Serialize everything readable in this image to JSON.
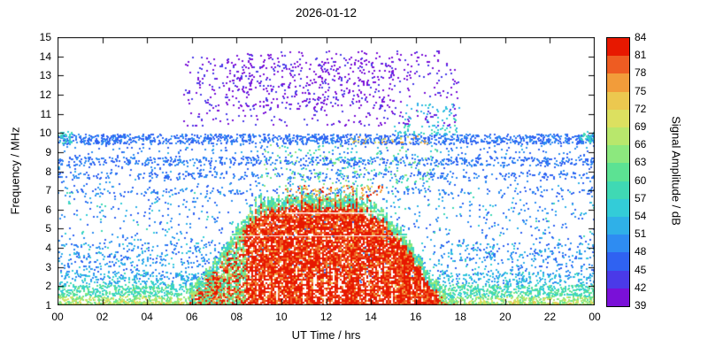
{
  "chart_data": {
    "type": "heatmap",
    "title": "2026-01-12",
    "xlabel": "UT Time / hrs",
    "ylabel": "Frequency / MHz",
    "xlim": [
      0,
      24
    ],
    "ylim": [
      1,
      15
    ],
    "grid": false,
    "x_tick_values": [
      0,
      2,
      4,
      6,
      8,
      10,
      12,
      14,
      16,
      18,
      20,
      22,
      24
    ],
    "x_tick_labels": [
      "00",
      "02",
      "04",
      "06",
      "08",
      "10",
      "12",
      "14",
      "16",
      "18",
      "20",
      "22",
      "00"
    ],
    "y_tick_values": [
      1,
      2,
      3,
      4,
      5,
      6,
      7,
      8,
      9,
      10,
      11,
      12,
      13,
      14,
      15
    ],
    "colorbar": {
      "label": "Signal Amplitude / dB",
      "min": 39,
      "max": 84,
      "step": 3,
      "tick_labels": [
        39,
        42,
        45,
        48,
        51,
        54,
        57,
        60,
        63,
        66,
        69,
        72,
        75,
        78,
        81,
        84
      ],
      "colors": [
        "#7a10d8",
        "#4a3ae8",
        "#2f62f2",
        "#2e8cf2",
        "#2fb0e8",
        "#33ccd8",
        "#3fd9b4",
        "#5ce293",
        "#8ce87e",
        "#b8e76c",
        "#dce060",
        "#ecc84f",
        "#f29c3a",
        "#ee5c22",
        "#e71800"
      ]
    },
    "background": "#ffffff",
    "seed": 42,
    "features": [
      {
        "name": "background-scatter-blue",
        "type": "scatter",
        "t": [
          0,
          24
        ],
        "f": [
          2.2,
          9.4
        ],
        "amp": [
          45,
          52
        ],
        "n": 1500
      },
      {
        "name": "background-scatter-cyan",
        "type": "scatter",
        "t": [
          0,
          24
        ],
        "f": [
          2.2,
          7.0
        ],
        "amp": [
          53,
          59
        ],
        "n": 220
      },
      {
        "name": "band-9p7-MHz",
        "type": "scatter",
        "t": [
          0,
          24
        ],
        "f": [
          9.45,
          9.97
        ],
        "amp": [
          45,
          50
        ],
        "n": 1200
      },
      {
        "name": "band-8p5-MHz",
        "type": "scatter",
        "t": [
          0,
          24
        ],
        "f": [
          8.35,
          8.78
        ],
        "amp": [
          45,
          50
        ],
        "n": 520
      },
      {
        "name": "band-7p8-MHz",
        "type": "scatter",
        "t": [
          0,
          24
        ],
        "f": [
          7.65,
          7.98
        ],
        "amp": [
          45,
          50
        ],
        "n": 260
      },
      {
        "name": "band-7p0-MHz",
        "type": "scatter",
        "t": [
          0,
          24
        ],
        "f": [
          6.85,
          7.1
        ],
        "amp": [
          45,
          50
        ],
        "n": 130
      },
      {
        "name": "cyan-patch-left-edge",
        "type": "scatter",
        "t": [
          0,
          0.6
        ],
        "f": [
          9.5,
          10.1
        ],
        "amp": [
          54,
          60
        ],
        "n": 35
      },
      {
        "name": "cyan-patch-right-edge",
        "type": "scatter",
        "t": [
          23.3,
          24
        ],
        "f": [
          9.5,
          10.1
        ],
        "amp": [
          54,
          60
        ],
        "n": 30
      },
      {
        "name": "orange-dots-9p7",
        "type": "scatter",
        "t": [
          13,
          16.5
        ],
        "f": [
          9.5,
          9.85
        ],
        "amp": [
          69,
          78
        ],
        "n": 30
      },
      {
        "name": "teal-dots-10p2",
        "type": "scatter",
        "t": [
          15,
          18
        ],
        "f": [
          9.95,
          10.5
        ],
        "amp": [
          52,
          60
        ],
        "n": 55
      },
      {
        "name": "daytime-upper-scatter",
        "type": "scatter",
        "t": [
          9,
          17
        ],
        "f": [
          7.2,
          9.4
        ],
        "amp": [
          54,
          66
        ],
        "n": 190
      },
      {
        "name": "night-bottom-orange-left",
        "type": "scatter",
        "t": [
          0,
          7.3
        ],
        "f": [
          1.0,
          1.22
        ],
        "amp": [
          68,
          77
        ],
        "n": 170
      },
      {
        "name": "night-bottom-orange-right",
        "type": "scatter",
        "t": [
          16.9,
          24
        ],
        "f": [
          1.0,
          1.22
        ],
        "amp": [
          68,
          77
        ],
        "n": 170
      },
      {
        "name": "night-bottom-green-left",
        "type": "scatter",
        "t": [
          0,
          7.3
        ],
        "f": [
          1.0,
          1.5
        ],
        "amp": [
          60,
          72
        ],
        "n": 420
      },
      {
        "name": "night-bottom-green-right",
        "type": "scatter",
        "t": [
          16.9,
          24
        ],
        "f": [
          1.0,
          1.5
        ],
        "amp": [
          60,
          72
        ],
        "n": 420
      },
      {
        "name": "night-bottom-cyan-left",
        "type": "scatter",
        "t": [
          0,
          7.3
        ],
        "f": [
          1.5,
          2.1
        ],
        "amp": [
          54,
          64
        ],
        "n": 460
      },
      {
        "name": "night-bottom-cyan-right",
        "type": "scatter",
        "t": [
          16.9,
          24
        ],
        "f": [
          1.5,
          2.1
        ],
        "amp": [
          54,
          64
        ],
        "n": 460
      },
      {
        "name": "night-lower-blue-left",
        "type": "scatter",
        "t": [
          0,
          7.3
        ],
        "f": [
          2.1,
          2.75
        ],
        "amp": [
          48,
          58
        ],
        "n": 220
      },
      {
        "name": "night-lower-blue-right",
        "type": "scatter",
        "t": [
          16.9,
          24
        ],
        "f": [
          2.1,
          2.75
        ],
        "amp": [
          48,
          58
        ],
        "n": 220
      },
      {
        "name": "night-sparse-blue-left",
        "type": "scatter",
        "t": [
          0,
          7.3
        ],
        "f": [
          2.75,
          4.3
        ],
        "amp": [
          46,
          55
        ],
        "n": 220
      },
      {
        "name": "night-sparse-blue-right",
        "type": "scatter",
        "t": [
          16.9,
          24
        ],
        "f": [
          2.75,
          4.3
        ],
        "amp": [
          46,
          55
        ],
        "n": 200
      },
      {
        "name": "sunrise-red-blob",
        "type": "scatter",
        "t": [
          6.55,
          7.45
        ],
        "f": [
          1.0,
          2.6
        ],
        "amp": [
          75,
          84
        ],
        "n": 280
      },
      {
        "name": "daytime-dome",
        "type": "dome",
        "t": [
          5.9,
          17.7
        ],
        "center": 11.6,
        "width": 4.6,
        "power": 4,
        "base_f": 1.0,
        "top_base": 1.45,
        "peak": 5.3,
        "fringe_depth": 0.55,
        "fringe_amp": [
          54,
          67
        ],
        "core_amp": [
          73,
          84
        ],
        "gap_prob": 0.14,
        "left_green_until": 8.4,
        "right_green_from": 17.0,
        "green_amp": [
          57,
          68
        ],
        "dense_red_t": [
          15.2,
          16.9
        ]
      },
      {
        "name": "crest-speckle",
        "type": "scatter",
        "t": [
          10,
          14.5
        ],
        "f": [
          6.5,
          7.3
        ],
        "amp": [
          70,
          84
        ],
        "n": 110
      },
      {
        "name": "sporadic-purple-region",
        "type": "scatter",
        "t": [
          5.6,
          17.9
        ],
        "f": [
          10.4,
          14.35
        ],
        "amp": [
          39,
          44
        ],
        "n": 560
      },
      {
        "name": "sporadic-purple-dense",
        "type": "scatter",
        "t": [
          7.5,
          15
        ],
        "f": [
          11.3,
          13.9
        ],
        "amp": [
          39,
          43
        ],
        "n": 260
      },
      {
        "name": "teal-dots-in-purple",
        "type": "scatter",
        "t": [
          15.5,
          18
        ],
        "f": [
          10.6,
          11.6
        ],
        "amp": [
          51,
          58
        ],
        "n": 40
      },
      {
        "name": "white-line",
        "type": "line",
        "t": [
          10.2,
          14.6
        ],
        "f": 5.85,
        "color": "#ffffff"
      }
    ]
  }
}
